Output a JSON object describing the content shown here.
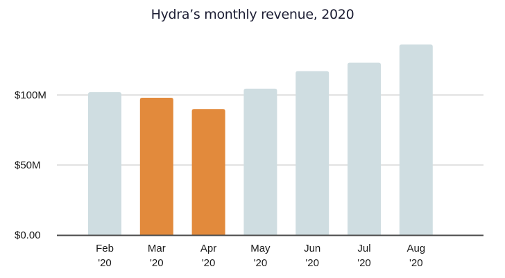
{
  "chart_data": {
    "type": "bar",
    "title": "Hydra’s monthly revenue, 2020",
    "xlabel": "",
    "ylabel": "",
    "categories": [
      {
        "month": "Feb",
        "year": "'20"
      },
      {
        "month": "Mar",
        "year": "'20"
      },
      {
        "month": "Apr",
        "year": "'20"
      },
      {
        "month": "May",
        "year": "'20"
      },
      {
        "month": "Jun",
        "year": "'20"
      },
      {
        "month": "Jul",
        "year": "'20"
      },
      {
        "month": "Aug",
        "year": "'20"
      }
    ],
    "values": [
      102,
      98,
      90,
      104.5,
      117,
      123,
      136
    ],
    "units": "$M",
    "highlighted": [
      false,
      true,
      true,
      false,
      false,
      false,
      false
    ],
    "ylim": [
      0,
      140
    ],
    "yticks": [
      {
        "value": 0,
        "label": "$0.00"
      },
      {
        "value": 50,
        "label": "$50M"
      },
      {
        "value": 100,
        "label": "$100M"
      }
    ],
    "grid": true,
    "colors": {
      "default_bar": "#cfdde1",
      "highlight_bar": "#e28a3c",
      "grid": "#d9d9d9",
      "axis": "#4a4a4a",
      "title": "#1c1d33"
    }
  }
}
